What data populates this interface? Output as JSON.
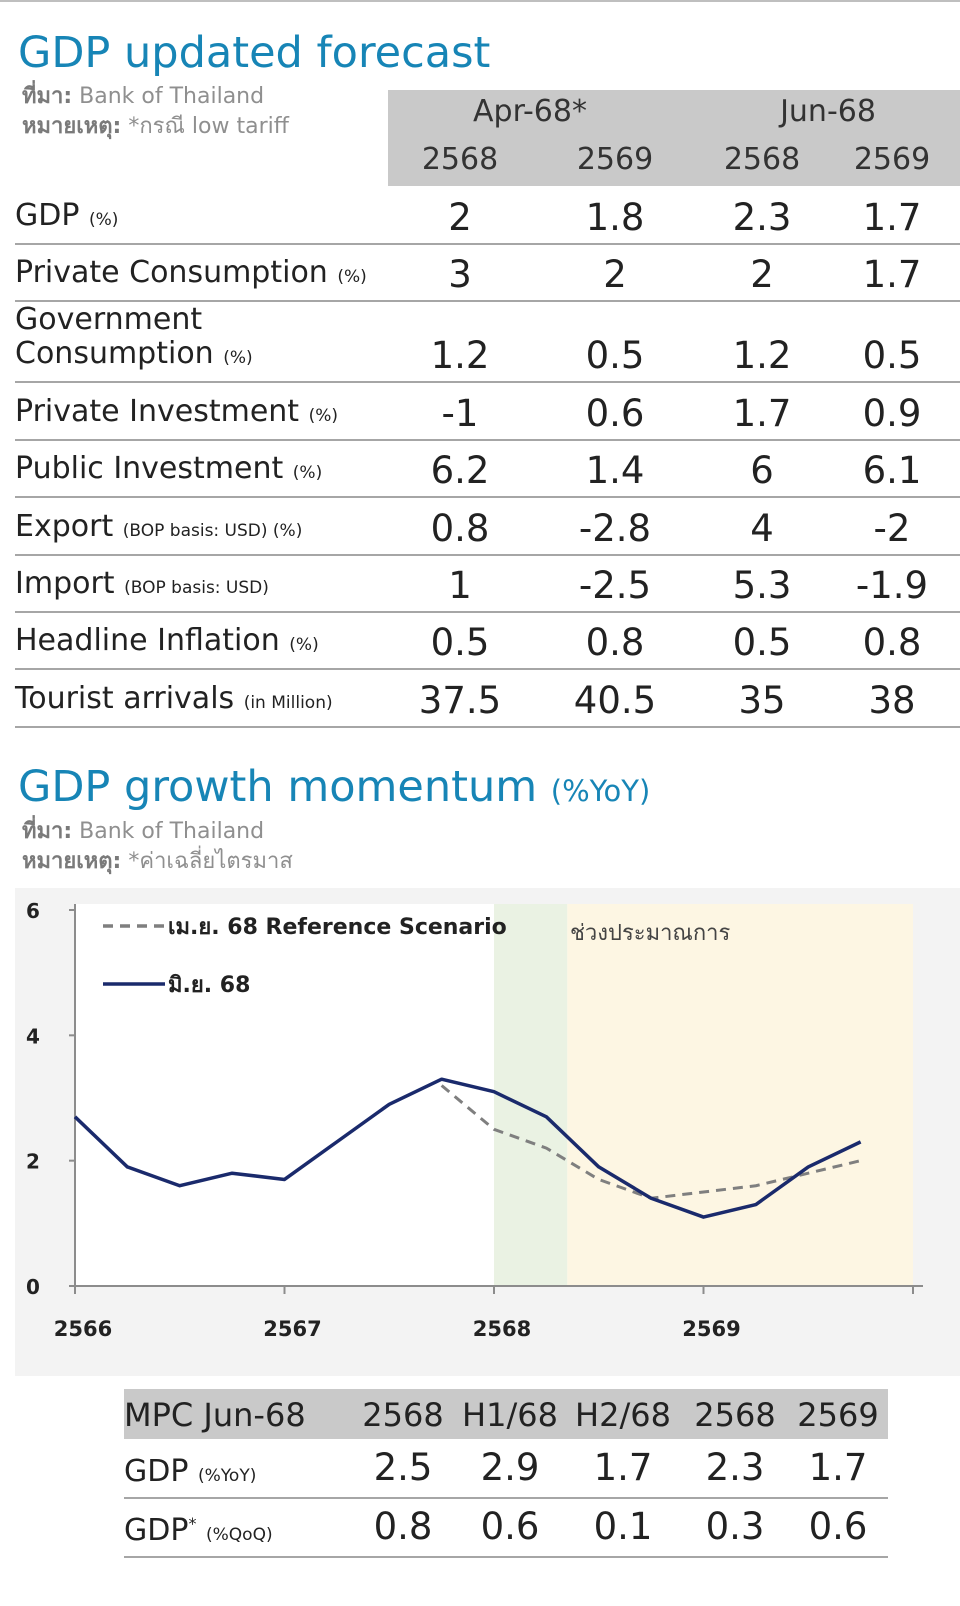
{
  "forecast": {
    "title": "GDP updated forecast",
    "source_label": "ที่มา:",
    "source": "Bank of Thailand",
    "note_label": "หมายเหตุ:",
    "note": "*กรณี low tariff",
    "col_groups": [
      "Apr-68*",
      "Jun-68"
    ],
    "col_years": [
      "2568",
      "2569",
      "2568",
      "2569"
    ],
    "rows": [
      {
        "label": "GDP",
        "unit": "(%)",
        "values": [
          "2",
          "1.8",
          "2.3",
          "1.7"
        ]
      },
      {
        "label": "Private Consumption",
        "unit": "(%)",
        "values": [
          "3",
          "2",
          "2",
          "1.7"
        ]
      },
      {
        "label": "Government",
        "label2": "Consumption",
        "unit": "(%)",
        "values": [
          "1.2",
          "0.5",
          "1.2",
          "0.5"
        ]
      },
      {
        "label": "Private Investment",
        "unit": "(%)",
        "values": [
          "-1",
          "0.6",
          "1.7",
          "0.9"
        ]
      },
      {
        "label": "Public Investment",
        "unit": "(%)",
        "values": [
          "6.2",
          "1.4",
          "6",
          "6.1"
        ]
      },
      {
        "label": "Export",
        "unit": "(BOP basis: USD) (%)",
        "values": [
          "0.8",
          "-2.8",
          "4",
          "-2"
        ]
      },
      {
        "label": "Import",
        "unit": "(BOP basis: USD)",
        "values": [
          "1",
          "-2.5",
          "5.3",
          "-1.9"
        ]
      },
      {
        "label": "Headline Inflation",
        "unit": "(%)",
        "values": [
          "0.5",
          "0.8",
          "0.5",
          "0.8"
        ]
      },
      {
        "label": "Tourist arrivals",
        "unit": "(in Million)",
        "values": [
          "37.5",
          "40.5",
          "35",
          "38"
        ]
      }
    ]
  },
  "momentum": {
    "title": "GDP growth momentum",
    "title_unit": "(%YoY)",
    "source_label": "ที่มา:",
    "source": "Bank of Thailand",
    "note_label": "หมายเหตุ:",
    "note": "*ค่าเฉลี่ยไตรมาส"
  },
  "chart_data": {
    "type": "line",
    "x": [
      2566.0,
      2566.25,
      2566.5,
      2566.75,
      2567.0,
      2567.25,
      2567.5,
      2567.75,
      2568.0,
      2568.25,
      2568.5,
      2568.75,
      2569.0,
      2569.25,
      2569.5,
      2569.75
    ],
    "x_ticks": [
      "2566",
      "2567",
      "2568",
      "2569"
    ],
    "ylim": [
      0,
      6
    ],
    "y_ticks": [
      "0",
      "2",
      "4",
      "6"
    ],
    "series": [
      {
        "name": "เม.ย. 68 Reference Scenario",
        "style": "dashed",
        "color": "#7f7f7f",
        "x": [
          2567.75,
          2568.0,
          2568.25,
          2568.5,
          2568.75,
          2569.0,
          2569.25,
          2569.5,
          2569.75
        ],
        "values": [
          3.2,
          2.5,
          2.2,
          1.7,
          1.4,
          1.5,
          1.6,
          1.8,
          2.0
        ]
      },
      {
        "name": "มิ.ย. 68",
        "style": "solid",
        "color": "#1a2a6c",
        "x": [
          2566.0,
          2566.25,
          2566.5,
          2566.75,
          2567.0,
          2567.25,
          2567.5,
          2567.75,
          2568.0,
          2568.25,
          2568.5,
          2568.75,
          2569.0,
          2569.25,
          2569.5,
          2569.75
        ],
        "values": [
          2.7,
          1.9,
          1.6,
          1.8,
          1.7,
          2.3,
          2.9,
          3.3,
          3.1,
          2.7,
          1.9,
          1.4,
          1.1,
          1.3,
          1.9,
          2.3
        ]
      }
    ],
    "shaded_regions": [
      {
        "from": 2568.0,
        "to": 2568.35,
        "color": "#eaf2e3"
      },
      {
        "from": 2568.35,
        "to": 2570.0,
        "color": "#fdf6e3",
        "label": "ช่วงประมาณการ"
      }
    ],
    "legend_placement": "top-left",
    "grid": false
  },
  "mpc": {
    "headers": [
      "MPC Jun-68",
      "2568",
      "H1/68",
      "H2/68",
      "2568",
      "2569"
    ],
    "rows": [
      {
        "label": "GDP",
        "unit": "(%YoY)",
        "values": [
          "2.5",
          "2.9",
          "1.7",
          "2.3",
          "1.7"
        ]
      },
      {
        "label": "GDP",
        "star": "*",
        "unit": "(%QoQ)",
        "values": [
          "0.8",
          "0.6",
          "0.1",
          "0.3",
          "0.6"
        ]
      }
    ]
  }
}
